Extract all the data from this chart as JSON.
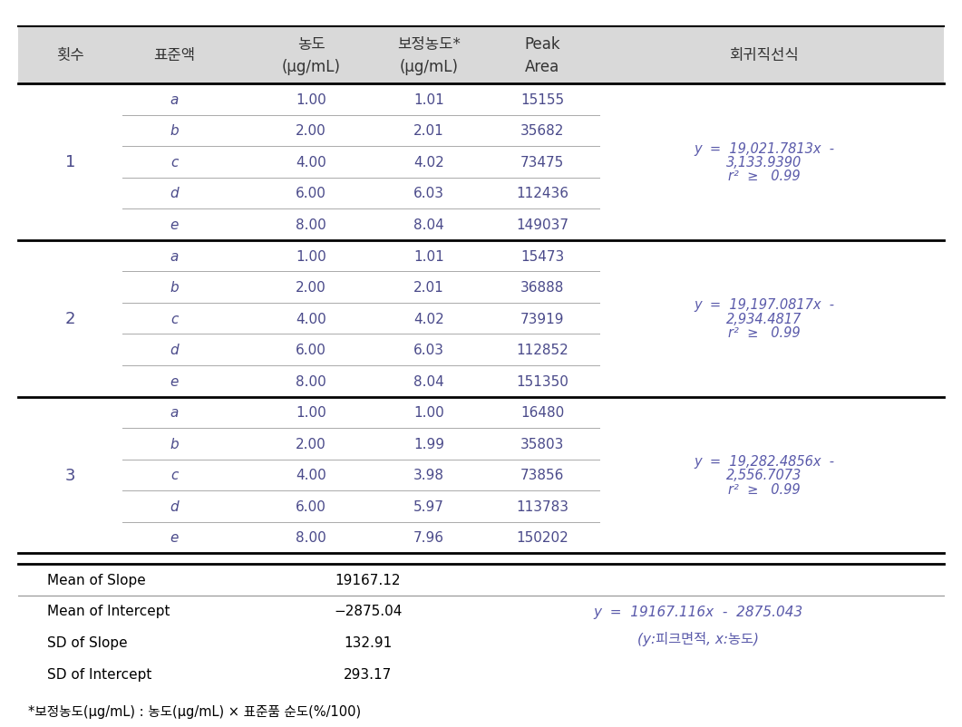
{
  "header_labels": [
    "횟수",
    "표준액",
    "농도\n(μg/mL)",
    "보정농도*\n(μg/mL)",
    "Peak\nArea",
    "회귀직선식"
  ],
  "groups": [
    {
      "group_num": "1",
      "rows": [
        [
          "a",
          "1.00",
          "1.01",
          "15155"
        ],
        [
          "b",
          "2.00",
          "2.01",
          "35682"
        ],
        [
          "c",
          "4.00",
          "4.02",
          "73475"
        ],
        [
          "d",
          "6.00",
          "6.03",
          "112436"
        ],
        [
          "e",
          "8.00",
          "8.04",
          "149037"
        ]
      ],
      "equation_line1": "y  =  19,021.7813x  -",
      "equation_line2": "3,133.9390",
      "equation_line3": "r²  ≥   0.99"
    },
    {
      "group_num": "2",
      "rows": [
        [
          "a",
          "1.00",
          "1.01",
          "15473"
        ],
        [
          "b",
          "2.00",
          "2.01",
          "36888"
        ],
        [
          "c",
          "4.00",
          "4.02",
          "73919"
        ],
        [
          "d",
          "6.00",
          "6.03",
          "112852"
        ],
        [
          "e",
          "8.00",
          "8.04",
          "151350"
        ]
      ],
      "equation_line1": "y  =  19,197.0817x  -",
      "equation_line2": "2,934.4817",
      "equation_line3": "r²  ≥   0.99"
    },
    {
      "group_num": "3",
      "rows": [
        [
          "a",
          "1.00",
          "1.00",
          "16480"
        ],
        [
          "b",
          "2.00",
          "1.99",
          "35803"
        ],
        [
          "c",
          "4.00",
          "3.98",
          "73856"
        ],
        [
          "d",
          "6.00",
          "5.97",
          "113783"
        ],
        [
          "e",
          "8.00",
          "7.96",
          "150202"
        ]
      ],
      "equation_line1": "y  =  19,282.4856x  -",
      "equation_line2": "2,556.7073",
      "equation_line3": "r²  ≥   0.99"
    }
  ],
  "summary_rows": [
    [
      "Mean of Slope",
      "19167.12"
    ],
    [
      "Mean of Intercept",
      "−2875.04"
    ],
    [
      "SD of Slope",
      "132.91"
    ],
    [
      "SD of Intercept",
      "293.17"
    ]
  ],
  "summary_equation_line1": "y  =  19167.116x  -  2875.043",
  "summary_equation_line2": "(y:피크면적, x:농도)",
  "footnote": "*보정농도(μg/mL) : 농도(μg/mL) × 표준품 순도(%/100)",
  "header_bg": "#d9d9d9",
  "text_color": "#4a4a8a",
  "header_text_color": "#333333",
  "eq_color": "#5a5aaa",
  "font_size": 11
}
